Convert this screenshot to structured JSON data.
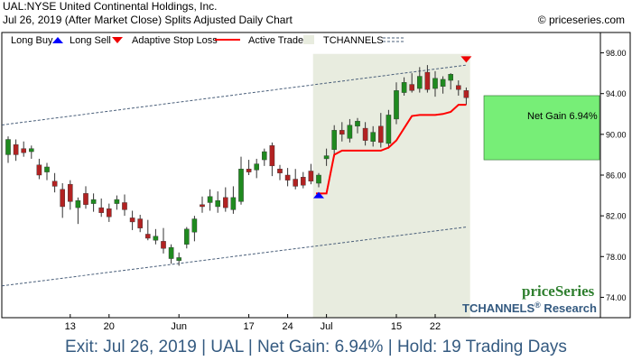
{
  "header": {
    "title": "UAL:NYSE United Continental Holdings, Inc.",
    "subtitle": "Jul 26, 2019 (After Market Close)  Splits Adjusted Daily Chart",
    "copyright": "© priceseries.com"
  },
  "legend": {
    "long_buy": "Long Buy",
    "long_sell": "Long Sell",
    "adaptive_stop": "Adaptive Stop Loss",
    "active_trade": "Active Trade",
    "tchannels": "TCHANNELS"
  },
  "annotation": {
    "net_gain": "Net Gain 6.94%"
  },
  "brand": {
    "name": "priceSeries",
    "research_a": "TCHANNELS",
    "research_reg": "®",
    "research_b": " Research"
  },
  "footer": {
    "text": "Exit: Jul 26, 2019 | UAL | Net Gain: 6.94% | Hold: 19 Trading Days"
  },
  "colors": {
    "up": "#1f8a1f",
    "down": "#b22222",
    "stop": "#ff0000",
    "active_bg": "#e8ecdf",
    "gain_box": "#77ee77",
    "buy": "#0000ff",
    "sell": "#ee0000",
    "footer": "#345a80",
    "channel": "#4a5f7a"
  },
  "chart_data": {
    "type": "candlestick",
    "ylim": [
      72,
      100
    ],
    "y_ticks": [
      "74.00",
      "78.00",
      "82.00",
      "86.00",
      "90.00",
      "94.00",
      "98.00"
    ],
    "x_ticks": [
      {
        "label": "13",
        "index": 8
      },
      {
        "label": "20",
        "index": 13
      },
      {
        "label": "Jun",
        "index": 22
      },
      {
        "label": "17",
        "index": 31
      },
      {
        "label": "24",
        "index": 36
      },
      {
        "label": "Jul",
        "index": 41
      },
      {
        "label": "15",
        "index": 50
      },
      {
        "label": "22",
        "index": 55
      }
    ],
    "candles": [
      {
        "o": 88.0,
        "h": 89.8,
        "l": 87.2,
        "c": 89.5
      },
      {
        "o": 89.0,
        "h": 89.5,
        "l": 87.4,
        "c": 88.0
      },
      {
        "o": 88.6,
        "h": 89.3,
        "l": 87.8,
        "c": 88.2
      },
      {
        "o": 88.3,
        "h": 88.9,
        "l": 87.6,
        "c": 88.6
      },
      {
        "o": 87.0,
        "h": 87.6,
        "l": 85.6,
        "c": 86.0
      },
      {
        "o": 86.3,
        "h": 87.2,
        "l": 85.5,
        "c": 86.8
      },
      {
        "o": 85.4,
        "h": 86.2,
        "l": 84.3,
        "c": 84.9
      },
      {
        "o": 84.6,
        "h": 85.2,
        "l": 81.8,
        "c": 82.9
      },
      {
        "o": 85.1,
        "h": 85.5,
        "l": 82.6,
        "c": 83.4
      },
      {
        "o": 82.8,
        "h": 83.8,
        "l": 81.2,
        "c": 83.5
      },
      {
        "o": 84.2,
        "h": 84.9,
        "l": 82.7,
        "c": 83.1
      },
      {
        "o": 83.2,
        "h": 84.2,
        "l": 82.4,
        "c": 83.6
      },
      {
        "o": 82.8,
        "h": 83.7,
        "l": 81.9,
        "c": 82.3
      },
      {
        "o": 82.7,
        "h": 83.2,
        "l": 81.4,
        "c": 81.9
      },
      {
        "o": 83.2,
        "h": 84.0,
        "l": 82.6,
        "c": 83.6
      },
      {
        "o": 83.3,
        "h": 84.1,
        "l": 82.0,
        "c": 82.6
      },
      {
        "o": 81.8,
        "h": 82.5,
        "l": 80.6,
        "c": 81.4
      },
      {
        "o": 81.7,
        "h": 82.1,
        "l": 80.4,
        "c": 80.8
      },
      {
        "o": 80.2,
        "h": 81.6,
        "l": 79.6,
        "c": 79.8
      },
      {
        "o": 79.6,
        "h": 80.7,
        "l": 79.2,
        "c": 80.0
      },
      {
        "o": 79.5,
        "h": 80.8,
        "l": 78.3,
        "c": 78.8
      },
      {
        "o": 77.8,
        "h": 79.2,
        "l": 77.3,
        "c": 78.9
      },
      {
        "o": 77.6,
        "h": 78.4,
        "l": 77.1,
        "c": 77.9
      },
      {
        "o": 79.2,
        "h": 80.9,
        "l": 78.8,
        "c": 80.7
      },
      {
        "o": 80.4,
        "h": 82.0,
        "l": 79.5,
        "c": 81.7
      },
      {
        "o": 83.1,
        "h": 83.9,
        "l": 82.3,
        "c": 82.9
      },
      {
        "o": 83.3,
        "h": 84.6,
        "l": 82.5,
        "c": 83.9
      },
      {
        "o": 82.9,
        "h": 84.4,
        "l": 82.3,
        "c": 83.5
      },
      {
        "o": 83.8,
        "h": 84.8,
        "l": 82.4,
        "c": 82.8
      },
      {
        "o": 82.6,
        "h": 84.9,
        "l": 82.2,
        "c": 83.8
      },
      {
        "o": 83.4,
        "h": 87.8,
        "l": 83.1,
        "c": 86.6
      },
      {
        "o": 86.6,
        "h": 87.5,
        "l": 86.0,
        "c": 86.3
      },
      {
        "o": 86.5,
        "h": 87.6,
        "l": 85.7,
        "c": 87.1
      },
      {
        "o": 87.5,
        "h": 88.6,
        "l": 86.9,
        "c": 88.3
      },
      {
        "o": 88.9,
        "h": 89.2,
        "l": 85.9,
        "c": 86.9
      },
      {
        "o": 86.6,
        "h": 87.0,
        "l": 85.5,
        "c": 86.2
      },
      {
        "o": 86.0,
        "h": 86.7,
        "l": 84.9,
        "c": 85.5
      },
      {
        "o": 85.6,
        "h": 86.6,
        "l": 84.6,
        "c": 84.9
      },
      {
        "o": 85.8,
        "h": 86.3,
        "l": 84.7,
        "c": 85.0
      },
      {
        "o": 86.4,
        "h": 87.1,
        "l": 85.1,
        "c": 85.4
      },
      {
        "o": 85.2,
        "h": 86.2,
        "l": 84.8,
        "c": 86.0
      },
      {
        "o": 87.6,
        "h": 88.6,
        "l": 86.9,
        "c": 87.9
      },
      {
        "o": 88.5,
        "h": 90.9,
        "l": 87.8,
        "c": 90.4
      },
      {
        "o": 90.4,
        "h": 91.2,
        "l": 89.3,
        "c": 90.0
      },
      {
        "o": 89.6,
        "h": 91.5,
        "l": 89.2,
        "c": 90.9
      },
      {
        "o": 90.8,
        "h": 91.6,
        "l": 90.1,
        "c": 91.3
      },
      {
        "o": 90.6,
        "h": 91.2,
        "l": 88.9,
        "c": 89.4
      },
      {
        "o": 89.3,
        "h": 90.8,
        "l": 88.8,
        "c": 90.2
      },
      {
        "o": 90.8,
        "h": 92.1,
        "l": 88.7,
        "c": 89.2
      },
      {
        "o": 89.1,
        "h": 92.4,
        "l": 88.6,
        "c": 91.9
      },
      {
        "o": 91.5,
        "h": 95.1,
        "l": 91.0,
        "c": 94.3
      },
      {
        "o": 94.1,
        "h": 95.6,
        "l": 93.8,
        "c": 95.1
      },
      {
        "o": 94.9,
        "h": 96.0,
        "l": 94.1,
        "c": 94.3
      },
      {
        "o": 94.5,
        "h": 96.6,
        "l": 94.1,
        "c": 95.7
      },
      {
        "o": 96.1,
        "h": 96.8,
        "l": 94.1,
        "c": 94.4
      },
      {
        "o": 94.5,
        "h": 96.2,
        "l": 93.7,
        "c": 95.5
      },
      {
        "o": 94.7,
        "h": 95.7,
        "l": 94.0,
        "c": 95.4
      },
      {
        "o": 95.3,
        "h": 96.0,
        "l": 94.4,
        "c": 95.9
      },
      {
        "o": 94.8,
        "h": 95.3,
        "l": 93.8,
        "c": 94.4
      },
      {
        "o": 94.3,
        "h": 94.6,
        "l": 92.9,
        "c": 93.6
      }
    ],
    "stop_loss": [
      {
        "i": 40,
        "v": 84.2
      },
      {
        "i": 41,
        "v": 84.2
      },
      {
        "i": 42,
        "v": 88.0
      },
      {
        "i": 43,
        "v": 88.4
      },
      {
        "i": 44,
        "v": 88.4
      },
      {
        "i": 45,
        "v": 88.4
      },
      {
        "i": 46,
        "v": 88.4
      },
      {
        "i": 47,
        "v": 88.4
      },
      {
        "i": 48,
        "v": 88.4
      },
      {
        "i": 49,
        "v": 88.7
      },
      {
        "i": 50,
        "v": 89.4
      },
      {
        "i": 51,
        "v": 90.6
      },
      {
        "i": 52,
        "v": 91.8
      },
      {
        "i": 53,
        "v": 91.9
      },
      {
        "i": 54,
        "v": 91.9
      },
      {
        "i": 55,
        "v": 91.9
      },
      {
        "i": 56,
        "v": 92.0
      },
      {
        "i": 57,
        "v": 92.2
      },
      {
        "i": 58,
        "v": 92.9
      },
      {
        "i": 59,
        "v": 92.9
      }
    ],
    "channel_upper": [
      {
        "i": 0,
        "v": 91.0
      },
      {
        "i": 59,
        "v": 96.8
      }
    ],
    "channel_lower": [
      {
        "i": 0,
        "v": 75.2
      },
      {
        "i": 59,
        "v": 80.9
      }
    ],
    "active_trade": {
      "start": 40,
      "end": 59
    },
    "long_buy": {
      "i": 40,
      "v": 84.0
    },
    "long_sell": {
      "i": 59,
      "v": 97.4
    },
    "net_gain_box": {
      "top": 93.8,
      "bottom": 87.5
    }
  }
}
